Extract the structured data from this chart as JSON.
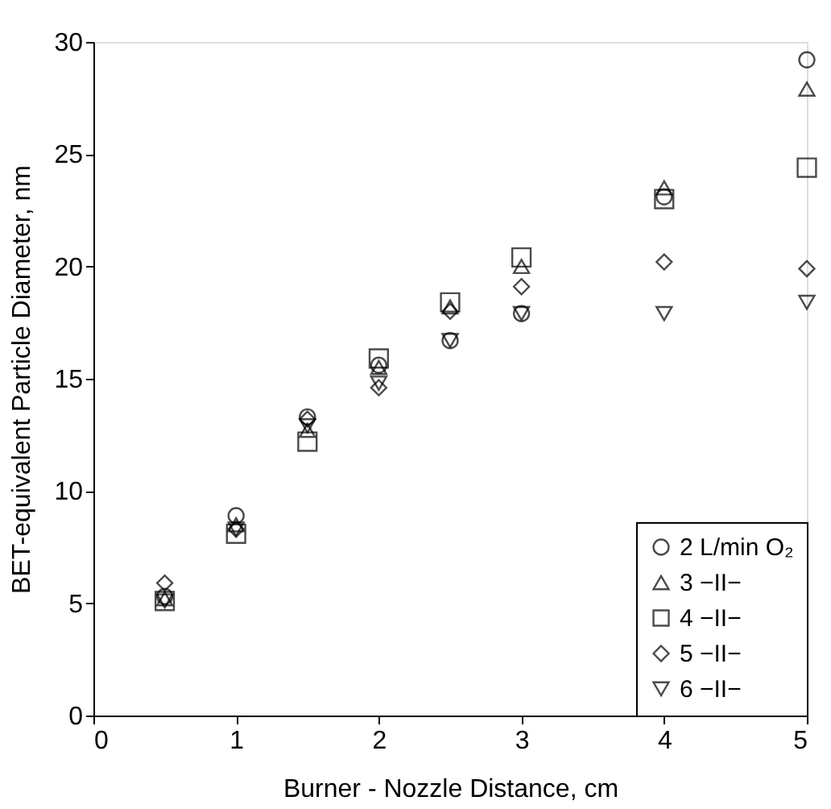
{
  "chart_data": {
    "type": "scatter",
    "xlabel": "Burner - Nozzle Distance, cm",
    "ylabel": "BET-equivalent Particle Diameter, nm",
    "x": [
      0.5,
      1,
      1.5,
      2,
      2.5,
      3,
      4,
      5
    ],
    "xlim": [
      0,
      5
    ],
    "xticks": [
      0,
      1,
      2,
      3,
      4,
      5
    ],
    "ylim": [
      0,
      30
    ],
    "yticks": [
      0,
      5,
      10,
      15,
      20,
      25,
      30
    ],
    "grid": false,
    "legend": "bottom right",
    "series": [
      {
        "name": "2 L/min O₂",
        "color": "#000000",
        "marker": "circle",
        "values": [
          5.3,
          8.9,
          13.3,
          15.6,
          16.7,
          17.9,
          23.1,
          29.2
        ]
      },
      {
        "name": "3 −II−",
        "color": "#000000",
        "marker": "triangle",
        "values": [
          5.2,
          8.5,
          12.7,
          15.5,
          18.2,
          20.0,
          23.5,
          27.9
        ]
      },
      {
        "name": "4 −II−",
        "color": "#000000",
        "marker": "square",
        "values": [
          5.1,
          8.1,
          12.2,
          15.9,
          18.4,
          20.4,
          23.0,
          24.4
        ]
      },
      {
        "name": "5 −II−",
        "color": "#000000",
        "marker": "diamond",
        "values": [
          5.9,
          8.3,
          13.2,
          14.6,
          18.0,
          19.1,
          20.2,
          19.9
        ]
      },
      {
        "name": "6 −II−",
        "color": "#000000",
        "marker": "triangle-down",
        "values": [
          5.1,
          8.3,
          12.9,
          14.8,
          16.7,
          17.9,
          17.9,
          18.4
        ]
      }
    ]
  }
}
